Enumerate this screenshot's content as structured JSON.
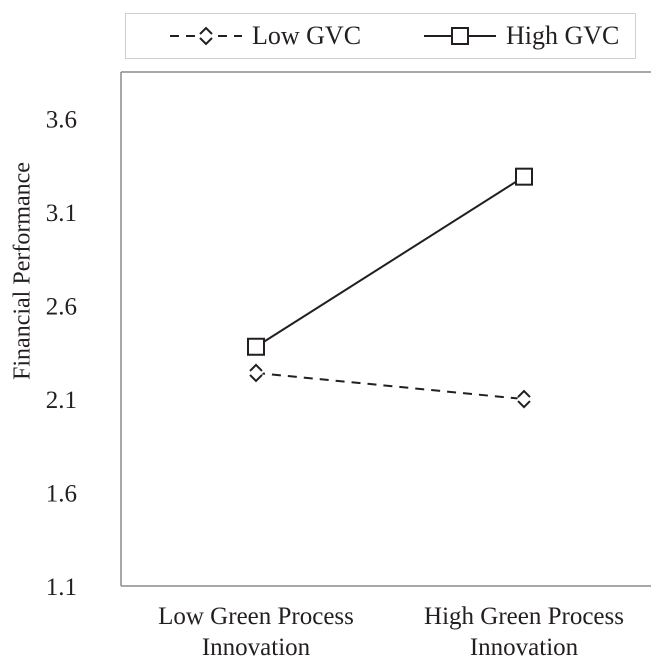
{
  "chart_data": {
    "type": "line",
    "categories": [
      [
        "Low Green Process",
        "Innovation"
      ],
      [
        "High Green Process",
        "Innovation"
      ]
    ],
    "series": [
      {
        "name": "Low GVC",
        "values": [
          2.24,
          2.1
        ],
        "style": "dashed",
        "marker": "diamond"
      },
      {
        "name": "High GVC",
        "values": [
          2.38,
          3.29
        ],
        "style": "solid",
        "marker": "square"
      }
    ],
    "xlabel": "",
    "ylabel": "Financial Performance",
    "ylim": [
      1.1,
      3.85
    ],
    "yticks": [
      "1.1",
      "1.6",
      "2.1",
      "2.6",
      "3.1",
      "3.6"
    ],
    "grid": false,
    "legend_position": "top",
    "colors": {
      "line": "#231f20",
      "axis": "#8c8c8c",
      "legend_border": "#cfcfcf"
    }
  }
}
